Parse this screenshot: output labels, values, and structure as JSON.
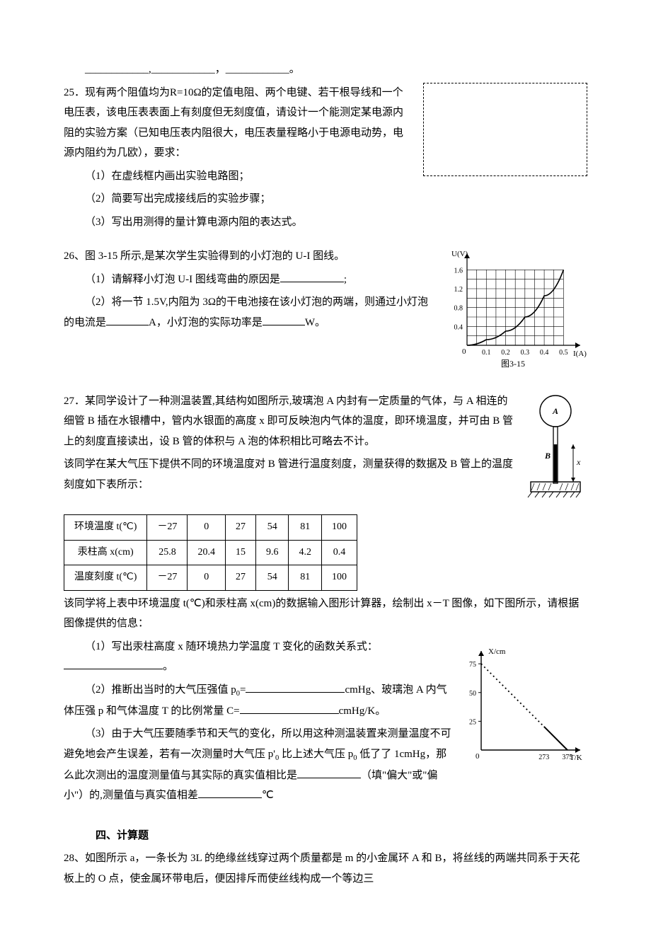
{
  "header_blanks": "____________,____________，____________。",
  "q25": {
    "stem": "25．现有两个阻值均为R=10Ω的定值电阻、两个电键、若干根导线和一个电压表，该电压表表面上有刻度但无刻度值，请设计一个能测定某电源内阻的实验方案（已知电压表内阻很大，电压表量程略小于电源电动势，电源内阻约为几欧），要求：",
    "p1": "（1）在虚线框内画出实验电路图；",
    "p2": "（2）简要写出完成接线后的实验步骤；",
    "p3": "（3）写出用测得的量计算电源内阻的表达式。"
  },
  "q26": {
    "stem": "26、图 3-15 所示,是某次学生实验得到的小灯泡的 U-I 图线。",
    "p1_a": "（1）请解释小灯泡 U-I 图线弯曲的原因是",
    "p1_b": ";",
    "p2_a": "（2）将一节 1.5V,内阻为 3Ω的干电池接在该小灯泡的两端，则通过小灯泡的电流是",
    "p2_b": "A，小灯泡的实际功率是",
    "p2_c": "W。",
    "chart": {
      "type": "line",
      "xlabel": "I(A)",
      "ylabel": "U(V)",
      "xticks": [
        0.1,
        0.2,
        0.3,
        0.4,
        0.5
      ],
      "yticks": [
        0.4,
        0.8,
        1.2,
        1.6
      ],
      "xlim": [
        0,
        0.55
      ],
      "ylim": [
        0,
        1.8
      ],
      "grid_color": "#000",
      "line_color": "#000",
      "background": "#ffffff",
      "curve": [
        [
          0,
          0
        ],
        [
          0.1,
          0.12
        ],
        [
          0.2,
          0.3
        ],
        [
          0.3,
          0.6
        ],
        [
          0.4,
          1.05
        ],
        [
          0.5,
          1.6
        ]
      ],
      "caption": "图3-15"
    }
  },
  "q27": {
    "stem": "27．某同学设计了一种测温装置,其结构如图所示,玻璃泡 A 内封有一定质量的气体，与 A 相连的细管 B 插在水银槽中，管内水银面的高度 x 即可反映泡内气体的温度，即环境温度，并可由 B 管上的刻度直接读出，设 B 管的体积与 A 泡的体积相比可略去不计。",
    "mid": "该同学在某大气压下提供不同的环境温度对 B 管进行温度刻度，测量获得的数据及 B 管上的温度刻度如下表所示：",
    "table": {
      "rows_header": [
        "环境温度 t(℃)",
        "汞柱高 x(cm)",
        "温度刻度 t(℃)"
      ],
      "columns": [
        "－27",
        "0",
        "27",
        "54",
        "81",
        "100"
      ],
      "row2": [
        "25.8",
        "20.4",
        "15",
        "9.6",
        "4.2",
        "0.4"
      ],
      "row3": [
        "－27",
        "0",
        "27",
        "54",
        "81",
        "100"
      ]
    },
    "afterTable": "该同学将上表中环境温度 t(℃)和汞柱高 x(cm)的数据输入图形计算器，绘制出 x－T 图像，如下图所示，请根据图像提供的信息：",
    "p1_a": "（1）写出汞柱高度 x 随环境热力学温度 T 变化的函数关系式：",
    "p1_b": "。",
    "p2_a": "（2）推断出当时的大气压强值 p",
    "p2_b": "=",
    "p2_c": "cmHg、玻璃泡 A 内气体压强 p 和气体温度 T 的比例常量 C=",
    "p2_d": "cmHg/K。",
    "p3_a": "（3）由于大气压要随季节和天气的变化，所以用这种测温装置来测量温度不可避免地会产生误差，若有一次测量时大气压 p'",
    "p3_b": " 比上述大气压 p",
    "p3_c": " 低了了 1cmHg，那么此次测出的温度测量值与其实际的真实值相比是",
    "p3_d": "（填\"偏大\"或\"偏小\"）的,测量值与真实值相差",
    "p3_e": "℃",
    "apparatus": {
      "bulb_label": "A",
      "tube_label": "B",
      "dim_label": "x"
    },
    "xtchart": {
      "type": "line",
      "xlabel": "T/K",
      "ylabel": "X/cm",
      "xticks": [
        273,
        375
      ],
      "yticks": [
        25,
        50,
        75
      ],
      "xlim": [
        0,
        400
      ],
      "ylim": [
        0,
        80
      ],
      "solid_color": "#000",
      "dotted_color": "#000",
      "background": "#ffffff",
      "solid_segment": [
        [
          273,
          20.4
        ],
        [
          375,
          0
        ]
      ],
      "dotted_segment": [
        [
          0,
          75
        ],
        [
          273,
          20.4
        ]
      ]
    }
  },
  "section4": "四、计算题",
  "q28": {
    "stem": "28、如图所示 a，一条长为 3L 的绝缘丝线穿过两个质量都是 m 的小金属环 A 和 B，将丝线的两端共同系于天花板上的 O 点，使金属环带电后，便因排斥而使丝线构成一个等边三"
  }
}
